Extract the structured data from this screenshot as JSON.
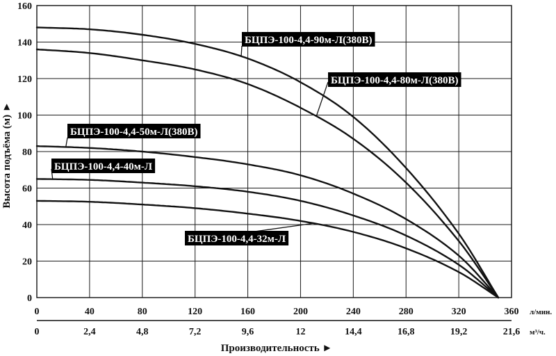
{
  "chart_data": {
    "type": "line",
    "xlabel": "Производительность ►",
    "ylabel": "Высота подъёма (м) ►",
    "x_unit": "л/мин.",
    "x2_unit": "м³/ч.",
    "xlim": [
      0,
      360
    ],
    "ylim": [
      0,
      160
    ],
    "x_ticks": [
      "0",
      "40",
      "80",
      "120",
      "160",
      "200",
      "240",
      "280",
      "320",
      "360"
    ],
    "x2_ticks": [
      "0",
      "2,4",
      "4,8",
      "7,2",
      "9,6",
      "12",
      "14,4",
      "16,8",
      "19,2",
      "21,6"
    ],
    "y_ticks": [
      "0",
      "20",
      "40",
      "60",
      "80",
      "100",
      "120",
      "140",
      "160"
    ],
    "grid": true,
    "series": [
      {
        "name": "БЦПЭ-100-4,4-90м-Л(380В)",
        "x": [
          0,
          40,
          80,
          120,
          160,
          200,
          240,
          280,
          320,
          350
        ],
        "y": [
          148,
          147,
          144,
          139,
          131,
          118,
          99,
          71,
          35,
          0
        ],
        "label_anchor_x": 155
      },
      {
        "name": "БЦПЭ-100-4,4-80м-Л(380В)",
        "x": [
          0,
          40,
          80,
          120,
          160,
          200,
          240,
          280,
          320,
          350
        ],
        "y": [
          136,
          134,
          130,
          125,
          117,
          104,
          87,
          63,
          31,
          0
        ],
        "label_anchor_x": 212
      },
      {
        "name": "БЦПЭ-100-4,4-50м-Л(380В)",
        "x": [
          0,
          40,
          80,
          120,
          160,
          200,
          240,
          280,
          320,
          350
        ],
        "y": [
          83,
          82,
          80,
          77,
          73,
          67,
          57,
          43,
          23,
          0
        ],
        "label_anchor_x": 22
      },
      {
        "name": "БЦПЭ-100-4,4-40м-Л",
        "x": [
          0,
          40,
          80,
          120,
          160,
          200,
          240,
          280,
          320,
          350
        ],
        "y": [
          65,
          64.5,
          63,
          61,
          58,
          53,
          45,
          34,
          18,
          0
        ],
        "label_anchor_x": 12
      },
      {
        "name": "БЦПЭ-100-4,4-32м-Л",
        "x": [
          0,
          40,
          80,
          120,
          160,
          200,
          240,
          280,
          320,
          350
        ],
        "y": [
          53,
          52.5,
          51,
          49,
          46,
          42,
          36,
          27,
          14,
          0
        ],
        "label_anchor_x": 210
      }
    ]
  }
}
